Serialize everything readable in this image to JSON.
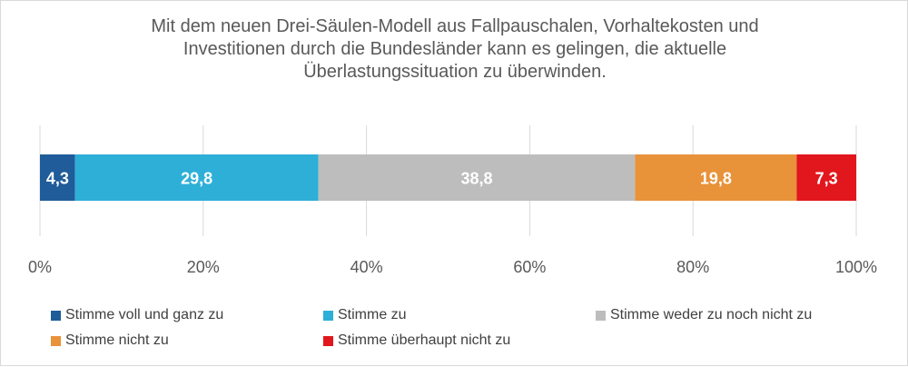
{
  "chart_data": {
    "type": "bar",
    "orientation": "horizontal-stacked-100",
    "title": "Mit dem neuen Drei-Säulen-Modell aus Fallpauschalen, Vorhaltekosten und\nInvestitionen durch die Bundesländer kann es gelingen, die aktuelle\nÜberlastungssituation zu überwinden.",
    "x_ticks": [
      "0%",
      "20%",
      "40%",
      "60%",
      "80%",
      "100%"
    ],
    "xlim": [
      0,
      100
    ],
    "grid": true,
    "legend_position": "bottom",
    "series": [
      {
        "name": "Stimme voll und ganz zu",
        "value": 4.3,
        "label": "4,3",
        "color": "#1f5c99"
      },
      {
        "name": "Stimme zu",
        "value": 29.8,
        "label": "29,8",
        "color": "#2eafd8"
      },
      {
        "name": "Stimme weder zu noch nicht zu",
        "value": 38.8,
        "label": "38,8",
        "color": "#bdbdbd"
      },
      {
        "name": "Stimme nicht zu",
        "value": 19.8,
        "label": "19,8",
        "color": "#e8923a"
      },
      {
        "name": "Stimme überhaupt nicht zu",
        "value": 7.3,
        "label": "7,3",
        "color": "#e2161d"
      }
    ]
  }
}
